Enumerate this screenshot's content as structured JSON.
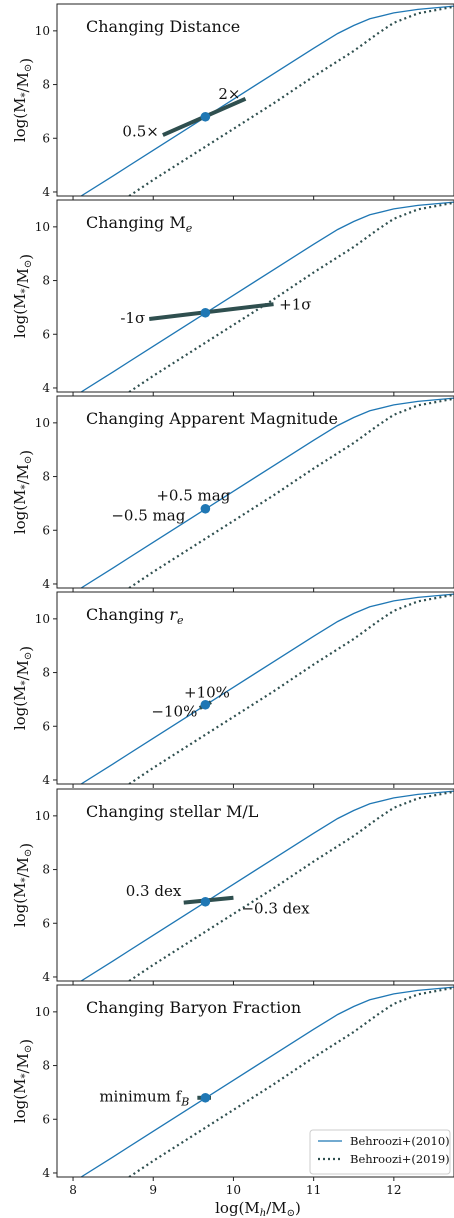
{
  "chart_data": {
    "type": "line",
    "xlabel": "log(M_h/M_⊙)",
    "xlim": [
      7.8,
      12.75
    ],
    "ylim": [
      3.85,
      11
    ],
    "xticks": [
      8,
      9,
      10,
      11,
      12
    ],
    "yticks": [
      4,
      6,
      8,
      10
    ],
    "legend": {
      "placement": "lower-right",
      "entries": [
        {
          "label": "Behroozi+(2010)",
          "style": "solid",
          "color": "#1f77b4"
        },
        {
          "label": "Behroozi+(2019)",
          "style": "dotted",
          "color": "#2f4f4f"
        }
      ]
    },
    "series": [
      {
        "name": "Behroozi+(2010)",
        "x": [
          8.1,
          8.5,
          9.0,
          9.5,
          10.0,
          10.5,
          11.0,
          11.3,
          11.5,
          11.7,
          12.0,
          12.3,
          12.75
        ],
        "y": [
          3.85,
          4.6,
          5.55,
          6.5,
          7.45,
          8.4,
          9.35,
          9.9,
          10.2,
          10.45,
          10.67,
          10.8,
          10.92
        ]
      },
      {
        "name": "Behroozi+(2019)",
        "x": [
          8.7,
          9.0,
          9.5,
          10.0,
          10.5,
          11.0,
          11.5,
          11.8,
          12.0,
          12.3,
          12.75
        ],
        "y": [
          3.85,
          4.45,
          5.4,
          6.35,
          7.3,
          8.3,
          9.25,
          9.9,
          10.3,
          10.65,
          10.9
        ]
      }
    ],
    "point": {
      "x": 9.65,
      "y": 6.8,
      "color": "#1f77b4"
    },
    "panels": [
      {
        "title": "Changing Distance",
        "ylabel": "log(M_*/M_⊙)",
        "segment": {
          "x": [
            9.12,
            10.15
          ],
          "y": [
            6.12,
            7.47
          ]
        },
        "labels": [
          {
            "text": "2×",
            "x": 9.95,
            "y": 7.65,
            "anchor": "middle"
          },
          {
            "text": "0.5×",
            "x": 9.07,
            "y": 6.25,
            "anchor": "end"
          }
        ]
      },
      {
        "title": "Changing M",
        "title_sub": "e",
        "ylabel": "log(M_*/M_⊙)",
        "segment": {
          "x": [
            8.95,
            10.5
          ],
          "y": [
            6.57,
            7.12
          ]
        },
        "labels": [
          {
            "text": "+1σ",
            "x": 10.57,
            "y": 7.1,
            "anchor": "start"
          },
          {
            "text": "-1σ",
            "x": 8.9,
            "y": 6.6,
            "anchor": "end"
          }
        ]
      },
      {
        "title": "Changing Apparent Magnitude",
        "ylabel": "log(M_*/M_⊙)",
        "segment": {
          "x": [
            9.63,
            9.67
          ],
          "y": [
            6.78,
            6.82
          ]
        },
        "labels": [
          {
            "text": "+0.5 mag",
            "x": 9.5,
            "y": 7.3,
            "anchor": "middle"
          },
          {
            "text": "−0.5 mag",
            "x": 9.4,
            "y": 6.55,
            "anchor": "end"
          }
        ]
      },
      {
        "title": "Changing ",
        "title_italic": "r",
        "title_sub": "e",
        "ylabel": "log(M_*/M_⊙)",
        "segment": {
          "x": [
            9.58,
            9.72
          ],
          "y": [
            6.68,
            6.9
          ]
        },
        "labels": [
          {
            "text": "+10%",
            "x": 9.67,
            "y": 7.25,
            "anchor": "middle"
          },
          {
            "text": "−10%",
            "x": 9.55,
            "y": 6.55,
            "anchor": "end"
          }
        ]
      },
      {
        "title": "Changing stellar M/L",
        "ylabel": "log(M_*/M_⊙)",
        "segment": {
          "x": [
            9.38,
            10.0
          ],
          "y": [
            6.77,
            6.95
          ]
        },
        "labels": [
          {
            "text": "0.3 dex",
            "x": 9.35,
            "y": 7.2,
            "anchor": "end"
          },
          {
            "text": "−0.3 dex",
            "x": 10.1,
            "y": 6.55,
            "anchor": "start"
          }
        ]
      },
      {
        "title": "Changing Baryon Fraction",
        "ylabel": "log(M_*/M_⊙)",
        "segment": {
          "x": [
            9.55,
            9.72
          ],
          "y": [
            6.8,
            6.8
          ]
        },
        "labels": [
          {
            "text": "minimum f",
            "sub": "B",
            "x": 9.45,
            "y": 6.85,
            "anchor": "end"
          }
        ],
        "show_legend": true
      }
    ]
  }
}
